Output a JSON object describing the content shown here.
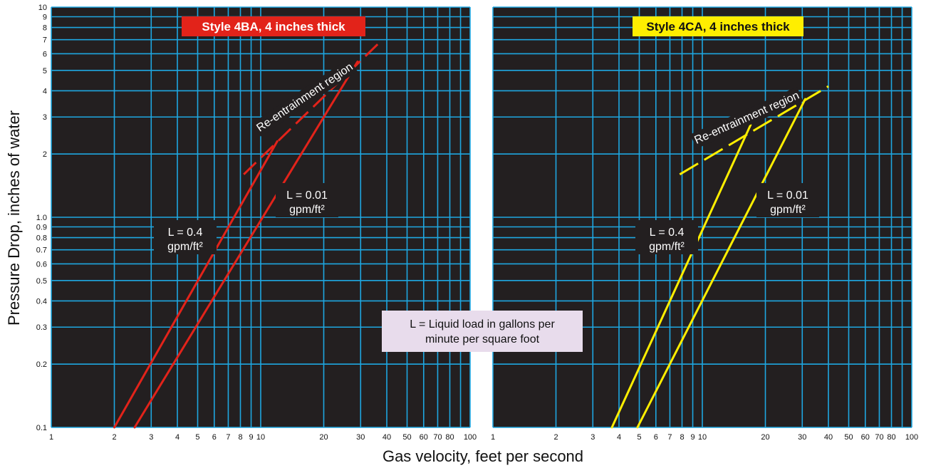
{
  "chart_data": [
    {
      "type": "line",
      "title": "Style 4BA, 4 inches thick",
      "xlabel": "Gas velocity, feet per second",
      "ylabel": "Pressure Drop, inches of water",
      "xscale": "log",
      "yscale": "log",
      "xlim": [
        1,
        100
      ],
      "ylim": [
        0.1,
        10
      ],
      "grid": true,
      "title_color": "#e2231a",
      "line_color": "#e2231a",
      "series": [
        {
          "label_line1": "L = 0.4",
          "label_line2": "gpm/ft²",
          "points": [
            [
              2.0,
              0.1
            ],
            [
              12.0,
              2.3
            ]
          ]
        },
        {
          "label_line1": "L = 0.01",
          "label_line2": "gpm/ft²",
          "points": [
            [
              2.5,
              0.1
            ],
            [
              29.0,
              5.5
            ]
          ]
        }
      ],
      "reentrainment": {
        "label": "Re-entrainment region",
        "points": [
          [
            8.3,
            1.6
          ],
          [
            37.0,
            6.8
          ]
        ]
      }
    },
    {
      "type": "line",
      "title": "Style 4CA, 4 inches thick",
      "xlabel": "Gas velocity, feet per second",
      "ylabel": "Pressure Drop, inches of water",
      "xscale": "log",
      "yscale": "log",
      "xlim": [
        1,
        100
      ],
      "ylim": [
        0.1,
        10
      ],
      "grid": true,
      "title_color": "#ffee00",
      "line_color": "#ffee00",
      "series": [
        {
          "label_line1": "L = 0.4",
          "label_line2": "gpm/ft²",
          "points": [
            [
              3.7,
              0.1
            ],
            [
              17.0,
              2.75
            ]
          ]
        },
        {
          "label_line1": "L = 0.01",
          "label_line2": "gpm/ft²",
          "points": [
            [
              4.9,
              0.1
            ],
            [
              31.0,
              3.65
            ]
          ]
        }
      ],
      "reentrainment": {
        "label": "Re-entrainment region",
        "points": [
          [
            7.8,
            1.6
          ],
          [
            40.0,
            4.2
          ]
        ]
      }
    }
  ],
  "x_ticks": [
    "1",
    "2",
    "3",
    "4",
    "5",
    "6",
    "7",
    "8",
    "9",
    "10",
    "20",
    "30",
    "40",
    "50",
    "60",
    "70",
    "80",
    "100"
  ],
  "y_ticks": [
    "0.1",
    "0.2",
    "0.3",
    "0.4",
    "0.5",
    "0.6",
    "0.7",
    "0.8",
    "0.9",
    "1.0",
    "2",
    "3",
    "4",
    "5",
    "6",
    "7",
    "8",
    "9",
    "10"
  ],
  "legend": {
    "line1": "L = Liquid load in gallons per",
    "line2": "minute per square foot"
  },
  "colors": {
    "plot_background": "#231f20",
    "grid": "#1ea7e1",
    "legend_background": "#e8dcec"
  }
}
